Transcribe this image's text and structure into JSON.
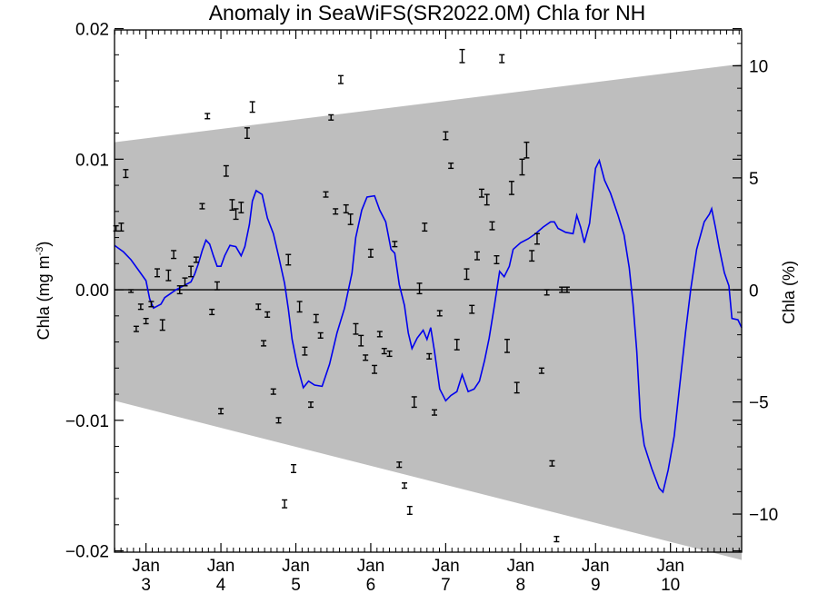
{
  "chart_data": {
    "type": "line",
    "title": "Anomaly in SeaWiFS(SR2022.0M) Chla for NH",
    "ylabel_left_base": "Chla (mg m",
    "ylabel_left_sup": "-3",
    "ylabel_left_close": ")",
    "ylabel_right": "Chla (%)",
    "x_range": [
      2.58,
      10.95
    ],
    "ylim_left": [
      -0.0201,
      0.0199
    ],
    "ylim_right": [
      -11.7,
      11.6
    ],
    "x_ticks": [
      {
        "top": "Jan",
        "bottom": "3",
        "x": 3
      },
      {
        "top": "Jan",
        "bottom": "4",
        "x": 4
      },
      {
        "top": "Jan",
        "bottom": "5",
        "x": 5
      },
      {
        "top": "Jan",
        "bottom": "6",
        "x": 6
      },
      {
        "top": "Jan",
        "bottom": "7",
        "x": 7
      },
      {
        "top": "Jan",
        "bottom": "8",
        "x": 8
      },
      {
        "top": "Jan",
        "bottom": "9",
        "x": 9
      },
      {
        "top": "Jan",
        "bottom": "10",
        "x": 10
      }
    ],
    "y_ticks_left": [
      {
        "value": 0.02,
        "label": "0.02"
      },
      {
        "value": 0.01,
        "label": "0.01"
      },
      {
        "value": 0.0,
        "label": "0.00"
      },
      {
        "value": -0.01,
        "label": "−0.01"
      },
      {
        "value": -0.02,
        "label": "−0.02"
      }
    ],
    "y_ticks_right": [
      {
        "value": 10,
        "label": "10"
      },
      {
        "value": 5,
        "label": "5"
      },
      {
        "value": 0,
        "label": "0"
      },
      {
        "value": -5,
        "label": "−5"
      },
      {
        "value": -10,
        "label": "−10"
      }
    ],
    "zero_line": 0,
    "band": {
      "upper": [
        [
          2.58,
          0.0113
        ],
        [
          10.95,
          0.0173
        ]
      ],
      "lower": [
        [
          2.58,
          -0.0085
        ],
        [
          10.95,
          -0.0207
        ]
      ],
      "color": "#bebebe"
    },
    "line_series": {
      "color": "#0000ee",
      "points": [
        [
          2.58,
          0.0034
        ],
        [
          2.7,
          0.0029
        ],
        [
          2.8,
          0.0023
        ],
        [
          2.9,
          0.0015
        ],
        [
          3.0,
          0.0007
        ],
        [
          3.05,
          -0.0007
        ],
        [
          3.1,
          -0.0014
        ],
        [
          3.2,
          -0.0011
        ],
        [
          3.25,
          -0.0006
        ],
        [
          3.3,
          -0.0004
        ],
        [
          3.4,
          0.0
        ],
        [
          3.5,
          0.0003
        ],
        [
          3.6,
          0.0006
        ],
        [
          3.65,
          0.0012
        ],
        [
          3.7,
          0.002
        ],
        [
          3.75,
          0.003
        ],
        [
          3.8,
          0.0038
        ],
        [
          3.85,
          0.0035
        ],
        [
          3.9,
          0.0026
        ],
        [
          3.95,
          0.0018
        ],
        [
          4.0,
          0.0018
        ],
        [
          4.05,
          0.0026
        ],
        [
          4.12,
          0.0034
        ],
        [
          4.2,
          0.0033
        ],
        [
          4.27,
          0.0026
        ],
        [
          4.32,
          0.0033
        ],
        [
          4.38,
          0.005
        ],
        [
          4.42,
          0.0068
        ],
        [
          4.47,
          0.0076
        ],
        [
          4.55,
          0.0073
        ],
        [
          4.62,
          0.0055
        ],
        [
          4.7,
          0.0043
        ],
        [
          4.78,
          0.0023
        ],
        [
          4.85,
          0.0005
        ],
        [
          4.9,
          -0.0015
        ],
        [
          4.95,
          -0.0038
        ],
        [
          5.02,
          -0.0058
        ],
        [
          5.1,
          -0.0075
        ],
        [
          5.17,
          -0.007
        ],
        [
          5.25,
          -0.0073
        ],
        [
          5.35,
          -0.0074
        ],
        [
          5.45,
          -0.0057
        ],
        [
          5.55,
          -0.0033
        ],
        [
          5.65,
          -0.0014
        ],
        [
          5.75,
          0.0013
        ],
        [
          5.8,
          0.004
        ],
        [
          5.88,
          0.0061
        ],
        [
          5.95,
          0.0071
        ],
        [
          6.05,
          0.0072
        ],
        [
          6.12,
          0.0061
        ],
        [
          6.2,
          0.0052
        ],
        [
          6.27,
          0.0031
        ],
        [
          6.32,
          0.0028
        ],
        [
          6.38,
          0.0004
        ],
        [
          6.45,
          -0.0012
        ],
        [
          6.5,
          -0.0033
        ],
        [
          6.55,
          -0.0045
        ],
        [
          6.62,
          -0.0037
        ],
        [
          6.7,
          -0.0031
        ],
        [
          6.75,
          -0.0038
        ],
        [
          6.8,
          -0.0029
        ],
        [
          6.85,
          -0.0047
        ],
        [
          6.92,
          -0.0076
        ],
        [
          7.0,
          -0.0085
        ],
        [
          7.07,
          -0.0081
        ],
        [
          7.15,
          -0.0078
        ],
        [
          7.22,
          -0.0065
        ],
        [
          7.3,
          -0.0078
        ],
        [
          7.38,
          -0.0076
        ],
        [
          7.45,
          -0.007
        ],
        [
          7.52,
          -0.0054
        ],
        [
          7.58,
          -0.0037
        ],
        [
          7.65,
          -0.0012
        ],
        [
          7.72,
          0.0014
        ],
        [
          7.78,
          0.001
        ],
        [
          7.85,
          0.0018
        ],
        [
          7.9,
          0.0031
        ],
        [
          8.0,
          0.0036
        ],
        [
          8.1,
          0.0039
        ],
        [
          8.2,
          0.0043
        ],
        [
          8.3,
          0.0048
        ],
        [
          8.4,
          0.0052
        ],
        [
          8.45,
          0.0052
        ],
        [
          8.5,
          0.0047
        ],
        [
          8.6,
          0.0044
        ],
        [
          8.7,
          0.0043
        ],
        [
          8.75,
          0.0057
        ],
        [
          8.8,
          0.0048
        ],
        [
          8.85,
          0.0036
        ],
        [
          8.92,
          0.0051
        ],
        [
          9.0,
          0.0093
        ],
        [
          9.05,
          0.0099
        ],
        [
          9.12,
          0.0084
        ],
        [
          9.2,
          0.0074
        ],
        [
          9.3,
          0.0057
        ],
        [
          9.38,
          0.0042
        ],
        [
          9.45,
          0.0017
        ],
        [
          9.5,
          -0.0011
        ],
        [
          9.55,
          -0.0047
        ],
        [
          9.6,
          -0.0098
        ],
        [
          9.65,
          -0.0119
        ],
        [
          9.75,
          -0.0137
        ],
        [
          9.85,
          -0.0152
        ],
        [
          9.9,
          -0.0155
        ],
        [
          9.97,
          -0.0138
        ],
        [
          10.05,
          -0.0112
        ],
        [
          10.12,
          -0.0075
        ],
        [
          10.2,
          -0.0033
        ],
        [
          10.27,
          0.0
        ],
        [
          10.35,
          0.0031
        ],
        [
          10.45,
          0.0052
        ],
        [
          10.52,
          0.0058
        ],
        [
          10.55,
          0.0062
        ],
        [
          10.6,
          0.0048
        ],
        [
          10.65,
          0.0032
        ],
        [
          10.72,
          0.0013
        ],
        [
          10.78,
          0.0003
        ],
        [
          10.82,
          -0.0022
        ],
        [
          10.9,
          -0.0023
        ],
        [
          10.95,
          -0.0029
        ]
      ]
    },
    "error_bars": {
      "color": "#000000",
      "points": [
        [
          2.6,
          0.0047,
          0.0002
        ],
        [
          2.67,
          0.0048,
          0.0003
        ],
        [
          2.73,
          0.0089,
          0.0003
        ],
        [
          2.8,
          -0.0001,
          0.0001
        ],
        [
          2.87,
          -0.003,
          0.0002
        ],
        [
          2.93,
          -0.0013,
          0.0002
        ],
        [
          3.0,
          -0.0024,
          0.0002
        ],
        [
          3.07,
          -0.0011,
          0.0002
        ],
        [
          3.15,
          0.0013,
          0.0003
        ],
        [
          3.22,
          -0.0027,
          0.0004
        ],
        [
          3.3,
          0.0011,
          0.0004
        ],
        [
          3.37,
          0.0027,
          0.0003
        ],
        [
          3.45,
          0.0,
          0.0003
        ],
        [
          3.52,
          0.0006,
          0.0003
        ],
        [
          3.6,
          0.0014,
          0.0004
        ],
        [
          3.67,
          0.0023,
          0.0002
        ],
        [
          3.75,
          0.0064,
          0.0002
        ],
        [
          3.82,
          0.0133,
          0.0002
        ],
        [
          3.88,
          -0.0017,
          0.0002
        ],
        [
          3.95,
          0.0003,
          0.0003
        ],
        [
          4.0,
          -0.0093,
          0.0002
        ],
        [
          4.07,
          0.0091,
          0.0004
        ],
        [
          4.15,
          0.0065,
          0.0004
        ],
        [
          4.2,
          0.0058,
          0.0004
        ],
        [
          4.27,
          0.0063,
          0.0004
        ],
        [
          4.35,
          0.012,
          0.0004
        ],
        [
          4.42,
          0.014,
          0.0004
        ],
        [
          4.5,
          -0.0013,
          0.0002
        ],
        [
          4.57,
          -0.0041,
          0.0002
        ],
        [
          4.62,
          -0.0019,
          0.0002
        ],
        [
          4.7,
          -0.0078,
          0.0002
        ],
        [
          4.77,
          -0.01,
          0.0002
        ],
        [
          4.85,
          -0.0164,
          0.0003
        ],
        [
          4.9,
          0.0023,
          0.0004
        ],
        [
          4.97,
          -0.0137,
          0.0003
        ],
        [
          5.05,
          -0.0013,
          0.0004
        ],
        [
          5.12,
          -0.0047,
          0.0003
        ],
        [
          5.2,
          -0.0088,
          0.0002
        ],
        [
          5.27,
          -0.0022,
          0.0003
        ],
        [
          5.33,
          -0.0035,
          0.0002
        ],
        [
          5.4,
          0.0073,
          0.0002
        ],
        [
          5.47,
          0.0132,
          0.0002
        ],
        [
          5.53,
          0.006,
          0.0002
        ],
        [
          5.6,
          0.0161,
          0.0003
        ],
        [
          5.67,
          0.0062,
          0.0003
        ],
        [
          5.73,
          0.0054,
          0.0004
        ],
        [
          5.8,
          -0.003,
          0.0004
        ],
        [
          5.87,
          -0.0039,
          0.0004
        ],
        [
          5.93,
          -0.0052,
          0.0002
        ],
        [
          6.0,
          0.0028,
          0.0003
        ],
        [
          6.05,
          -0.0061,
          0.0003
        ],
        [
          6.12,
          -0.0034,
          0.0002
        ],
        [
          6.18,
          -0.0047,
          0.0002
        ],
        [
          6.25,
          -0.0049,
          0.0002
        ],
        [
          6.32,
          0.0035,
          0.0002
        ],
        [
          6.38,
          -0.0134,
          0.0002
        ],
        [
          6.45,
          -0.015,
          0.0002
        ],
        [
          6.52,
          -0.0169,
          0.0003
        ],
        [
          6.58,
          -0.0086,
          0.0004
        ],
        [
          6.65,
          0.0001,
          0.0004
        ],
        [
          6.72,
          0.0048,
          0.0003
        ],
        [
          6.78,
          -0.0051,
          0.0002
        ],
        [
          6.85,
          -0.0094,
          0.0002
        ],
        [
          6.92,
          -0.0018,
          0.0002
        ],
        [
          7.0,
          0.0118,
          0.0003
        ],
        [
          7.07,
          0.0095,
          0.0002
        ],
        [
          7.15,
          -0.0042,
          0.0004
        ],
        [
          7.22,
          0.0179,
          0.0005
        ],
        [
          7.28,
          0.0012,
          0.0004
        ],
        [
          7.35,
          -0.0015,
          0.0003
        ],
        [
          7.42,
          0.0026,
          0.0003
        ],
        [
          7.48,
          0.0074,
          0.0003
        ],
        [
          7.55,
          0.0069,
          0.0004
        ],
        [
          7.62,
          0.0049,
          0.0003
        ],
        [
          7.68,
          0.0023,
          0.0003
        ],
        [
          7.75,
          0.0177,
          0.0003
        ],
        [
          7.82,
          -0.0043,
          0.0005
        ],
        [
          7.88,
          0.0078,
          0.0005
        ],
        [
          7.95,
          -0.0075,
          0.0004
        ],
        [
          8.02,
          0.0094,
          0.0006
        ],
        [
          8.08,
          0.0107,
          0.0006
        ],
        [
          8.15,
          0.0026,
          0.0004
        ],
        [
          8.22,
          0.0039,
          0.0004
        ],
        [
          8.28,
          -0.0062,
          0.0002
        ],
        [
          8.35,
          -0.0002,
          0.0002
        ],
        [
          8.42,
          -0.0133,
          0.0002
        ],
        [
          8.48,
          -0.0191,
          0.0002
        ],
        [
          8.55,
          0.0,
          0.0002
        ],
        [
          8.62,
          0.0,
          0.0002
        ]
      ]
    }
  }
}
